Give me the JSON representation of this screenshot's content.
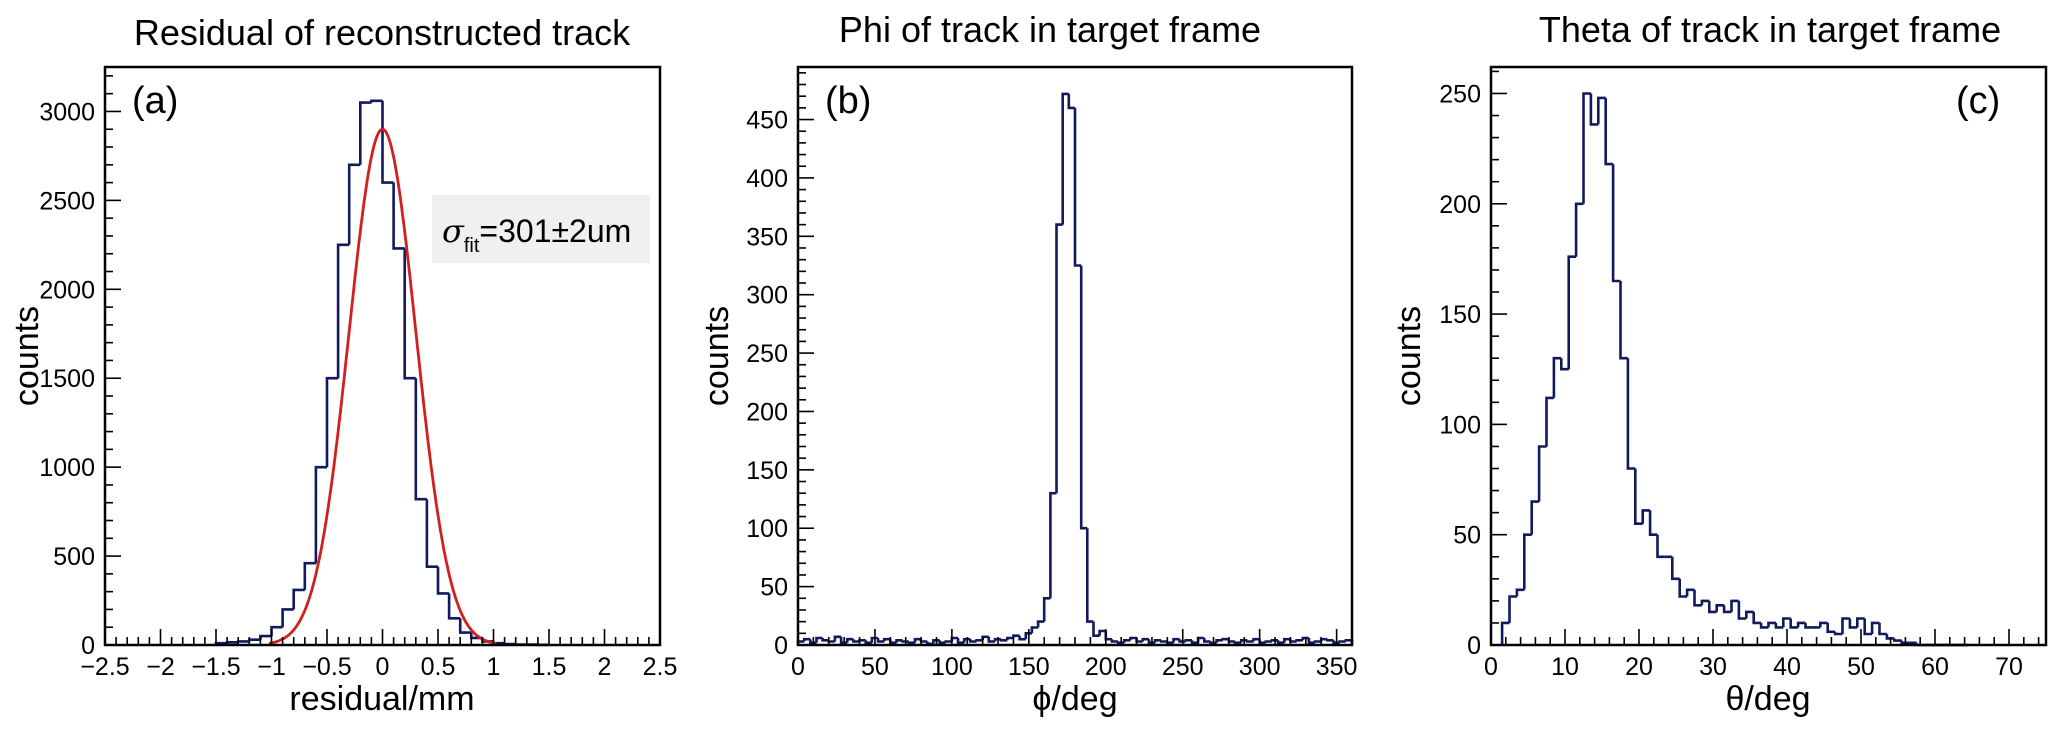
{
  "colors": {
    "histogram": "#101a5c",
    "fit": "#d21f1f",
    "stats_box": "#f0f0f0"
  },
  "chart_data": [
    {
      "type": "histogram",
      "title": "Residual of reconstructed track",
      "xlabel": "residual/mm",
      "ylabel": "counts",
      "panel_tag": "(a)",
      "xlim": [
        -2.5,
        2.5
      ],
      "ylim": [
        0,
        3250
      ],
      "x_ticks": [
        -2.5,
        -2,
        -1.5,
        -1,
        -0.5,
        0,
        0.5,
        1,
        1.5,
        2,
        2.5
      ],
      "x_tick_labels": [
        "−2.5",
        "−2",
        "−1.5",
        "−1",
        "−0.5",
        "0",
        "0.5",
        "1",
        "1.5",
        "2",
        "2.5"
      ],
      "y_ticks": [
        0,
        500,
        1000,
        1500,
        2000,
        2500,
        3000
      ],
      "y_tick_labels": [
        "0",
        "500",
        "1000",
        "1500",
        "2000",
        "2500",
        "3000"
      ],
      "bin_edges": [
        -1.5,
        -1.4,
        -1.3,
        -1.2,
        -1.1,
        -1.0,
        -0.9,
        -0.8,
        -0.7,
        -0.6,
        -0.5,
        -0.4,
        -0.3,
        -0.2,
        -0.1,
        0.0,
        0.1,
        0.2,
        0.3,
        0.4,
        0.5,
        0.6,
        0.7,
        0.8,
        0.9,
        1.0,
        1.1,
        1.2,
        1.3,
        1.4,
        1.5
      ],
      "values": [
        10,
        15,
        20,
        30,
        50,
        100,
        200,
        310,
        460,
        1000,
        1500,
        2250,
        2700,
        3050,
        3060,
        2600,
        2230,
        1500,
        820,
        440,
        290,
        150,
        70,
        40,
        20,
        10,
        5,
        3,
        2,
        1
      ],
      "fit": {
        "function": "gaussian",
        "mean": 0.0,
        "sigma": 0.301,
        "amplitude": 2900
      },
      "stats_box": {
        "symbol": "σ",
        "subscript": "fit",
        "text": "=301±2um"
      },
      "grid": false
    },
    {
      "type": "histogram",
      "title": "Phi of track in target frame",
      "xlabel": "ϕ/deg",
      "ylabel": "counts",
      "panel_tag": "(b)",
      "xlim": [
        0,
        360
      ],
      "ylim": [
        0,
        495
      ],
      "x_ticks": [
        0,
        50,
        100,
        150,
        200,
        250,
        300,
        350
      ],
      "x_tick_labels": [
        "0",
        "50",
        "100",
        "150",
        "200",
        "250",
        "300",
        "350"
      ],
      "y_ticks": [
        0,
        50,
        100,
        150,
        200,
        250,
        300,
        350,
        400,
        450
      ],
      "y_tick_labels": [
        "0",
        "50",
        "100",
        "150",
        "200",
        "250",
        "300",
        "350",
        "400",
        "450"
      ],
      "bin_edges": [
        0,
        4,
        8,
        12,
        16,
        20,
        24,
        28,
        32,
        36,
        40,
        44,
        48,
        52,
        56,
        60,
        64,
        68,
        72,
        76,
        80,
        84,
        88,
        92,
        96,
        100,
        104,
        108,
        112,
        116,
        120,
        124,
        128,
        132,
        136,
        140,
        144,
        148,
        152,
        156,
        160,
        164,
        168,
        172,
        176,
        180,
        184,
        188,
        192,
        196,
        200,
        204,
        208,
        212,
        216,
        220,
        224,
        228,
        232,
        236,
        240,
        244,
        248,
        252,
        256,
        260,
        264,
        268,
        272,
        276,
        280,
        284,
        288,
        292,
        296,
        300,
        304,
        308,
        312,
        316,
        320,
        324,
        328,
        332,
        336,
        340,
        344,
        348,
        352,
        356,
        360
      ],
      "values": [
        3,
        5,
        2,
        6,
        4,
        3,
        7,
        2,
        5,
        3,
        4,
        2,
        6,
        3,
        5,
        2,
        4,
        3,
        2,
        5,
        3,
        1,
        4,
        2,
        3,
        6,
        2,
        5,
        3,
        4,
        7,
        3,
        5,
        4,
        6,
        8,
        5,
        10,
        15,
        20,
        40,
        130,
        360,
        472,
        460,
        325,
        100,
        20,
        8,
        12,
        5,
        3,
        2,
        4,
        6,
        3,
        5,
        2,
        4,
        3,
        2,
        5,
        3,
        4,
        2,
        6,
        3,
        2,
        4,
        5,
        3,
        2,
        4,
        3,
        5,
        2,
        3,
        4,
        2,
        5,
        3,
        4,
        6,
        2,
        3,
        5,
        4,
        2,
        3,
        4
      ],
      "grid": false
    },
    {
      "type": "histogram",
      "title": "Theta of track in target frame",
      "xlabel": "θ/deg",
      "ylabel": "counts",
      "panel_tag": "(c)",
      "xlim": [
        0,
        75
      ],
      "ylim": [
        0,
        262
      ],
      "x_ticks": [
        0,
        10,
        20,
        30,
        40,
        50,
        60,
        70
      ],
      "x_tick_labels": [
        "0",
        "10",
        "20",
        "30",
        "40",
        "50",
        "60",
        "70"
      ],
      "y_ticks": [
        0,
        50,
        100,
        150,
        200,
        250
      ],
      "y_tick_labels": [
        "0",
        "50",
        "100",
        "150",
        "200",
        "250"
      ],
      "bin_edges": [
        1.5,
        2.5,
        3.5,
        4.5,
        5.5,
        6.5,
        7.5,
        8.5,
        9.5,
        10.5,
        11.5,
        12.5,
        13.5,
        14.5,
        15.5,
        16.5,
        17.5,
        18.5,
        19.5,
        20.5,
        21.5,
        22.5,
        23.5,
        24.5,
        25.5,
        26.5,
        27.5,
        28.5,
        29.5,
        30.5,
        31.5,
        32.5,
        33.5,
        34.5,
        35.5,
        36.5,
        37.5,
        38.5,
        39.5,
        40.5,
        41.5,
        42.5,
        43.5,
        44.5,
        45.5,
        46.5,
        47.5,
        48.5,
        49.5,
        50.5,
        51.5,
        52.5,
        53.5,
        54.5,
        55.5,
        56.5,
        57.5,
        58.5,
        59.5,
        60.5,
        61.5,
        62.5,
        63.5,
        64.5
      ],
      "values": [
        10,
        22,
        25,
        50,
        65,
        90,
        112,
        130,
        125,
        176,
        200,
        250,
        236,
        248,
        218,
        165,
        130,
        80,
        55,
        61,
        50,
        40,
        40,
        30,
        22,
        25,
        18,
        20,
        15,
        18,
        15,
        20,
        12,
        15,
        10,
        8,
        10,
        8,
        12,
        8,
        10,
        8,
        8,
        10,
        6,
        5,
        12,
        8,
        12,
        5,
        10,
        5,
        3,
        2,
        1,
        1,
        0,
        0,
        0,
        0,
        0,
        0,
        0
      ],
      "grid": false
    }
  ]
}
